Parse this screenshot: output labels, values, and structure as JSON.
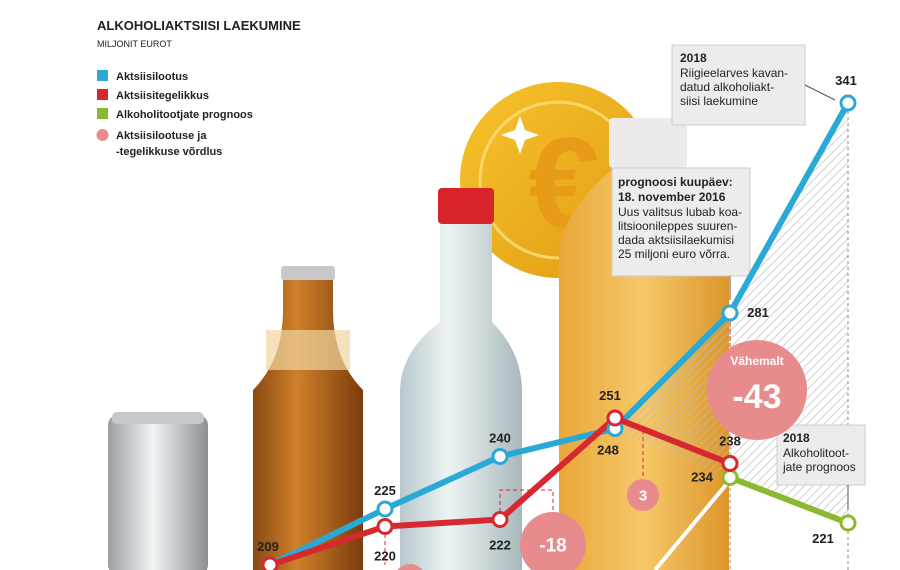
{
  "chart_data": {
    "type": "line",
    "title": "ALKOHOLIAKTSIISI LAEKUMINE",
    "subtitle": "MILJONIT EUROT",
    "categories": [
      null,
      null,
      null,
      null,
      null,
      null
    ],
    "series": [
      {
        "name": "Aktsiisilootus",
        "color": "#2aa9d6",
        "values": [
          209,
          225,
          240,
          248,
          281,
          341
        ]
      },
      {
        "name": "Aktsiisitegelikkus",
        "color": "#d7282f",
        "values": [
          209,
          220,
          222,
          251,
          238,
          null
        ]
      },
      {
        "name": "Alkoholitootjate prognoos",
        "color": "#8cb832",
        "values": [
          null,
          null,
          null,
          null,
          234,
          221
        ]
      }
    ],
    "legend_extra": {
      "name": [
        "Aktsiisilootuse ja",
        "-tegelikkuse võrdlus"
      ],
      "color": "#e88b8d"
    },
    "comparisons": [
      {
        "label": "Vähemalt",
        "value": -43,
        "color": "#e88b8d"
      },
      {
        "value": 3,
        "color": "#e88b8d"
      },
      {
        "value": -18,
        "color": "#e88b8d"
      }
    ],
    "annotations": [
      {
        "title": "2018",
        "lines": [
          "Riigieelarves kavan-",
          "datud alkoholiakt-",
          "siisi laekumine"
        ]
      },
      {
        "title": [
          "prognoosi kuupäev:",
          "18. november 2016"
        ],
        "lines": [
          "Uus valitsus lubab koa-",
          "litsioonileppes suuren-",
          "dada aktsiisilaekumisi",
          "25 miljoni euro võrra."
        ]
      },
      {
        "title": "2018",
        "lines": [
          "Alkoholitoot-",
          "jate prognoos"
        ]
      }
    ]
  }
}
